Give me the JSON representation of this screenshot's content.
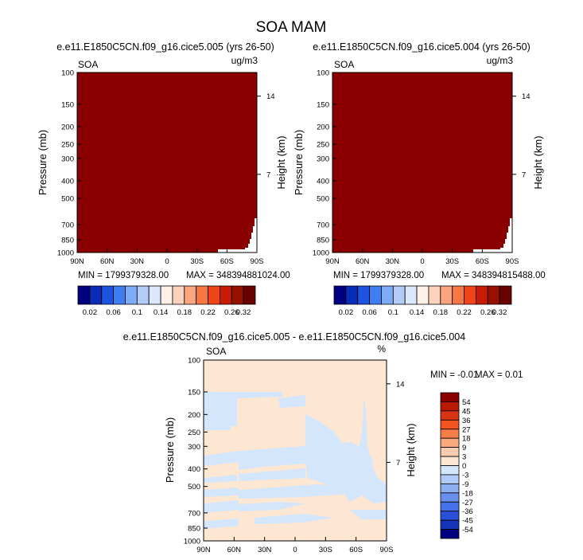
{
  "figure": {
    "title": "SOA MAM"
  },
  "chart_data": [
    {
      "type": "heatmap",
      "title": "e.e11.E1850C5CN.f09_g16.cice5.005 (yrs 26-50)",
      "left_label": "SOA",
      "right_label": "ug/m3",
      "ylabel": "Pressure (mb)",
      "y2label": "Height (km)",
      "x_ticks": [
        "90N",
        "60N",
        "30N",
        "0",
        "30S",
        "60S",
        "90S"
      ],
      "y_ticks": [
        "100",
        "150",
        "200",
        "250",
        "300",
        "400",
        "500",
        "700",
        "850",
        "1000"
      ],
      "y_tick_values": [
        100,
        150,
        200,
        250,
        300,
        400,
        500,
        700,
        850,
        1000
      ],
      "y2_ticks": [
        "14",
        "7"
      ],
      "y2_tick_values": [
        14,
        7
      ],
      "xlim": [
        90,
        -90
      ],
      "ylim": [
        100,
        1000
      ],
      "min_text": "MIN = 1799379328.00",
      "max_text": "MAX = 348394881024.00",
      "fill_color": "#8a0000",
      "colorbar_labels": [
        "0.02",
        "0.06",
        "0.1",
        "0.14",
        "0.18",
        "0.22",
        "0.26",
        "0.32"
      ]
    },
    {
      "type": "heatmap",
      "title": "e.e11.E1850C5CN.f09_g16.cice5.004 (yrs 26-50)",
      "left_label": "SOA",
      "right_label": "ug/m3",
      "ylabel": "Pressure (mb)",
      "y2label": "Height (km)",
      "x_ticks": [
        "90N",
        "60N",
        "30N",
        "0",
        "30S",
        "60S",
        "90S"
      ],
      "y_ticks": [
        "100",
        "150",
        "200",
        "250",
        "300",
        "400",
        "500",
        "700",
        "850",
        "1000"
      ],
      "y_tick_values": [
        100,
        150,
        200,
        250,
        300,
        400,
        500,
        700,
        850,
        1000
      ],
      "y2_ticks": [
        "14",
        "7"
      ],
      "y2_tick_values": [
        14,
        7
      ],
      "xlim": [
        90,
        -90
      ],
      "ylim": [
        100,
        1000
      ],
      "min_text": "MIN = 1799379328.00",
      "max_text": "MAX = 348394815488.00",
      "fill_color": "#8a0000",
      "colorbar_labels": [
        "0.02",
        "0.06",
        "0.1",
        "0.14",
        "0.18",
        "0.22",
        "0.26",
        "0.32"
      ]
    },
    {
      "type": "heatmap",
      "title": "e.e11.E1850C5CN.f09_g16.cice5.005 - e.e11.E1850C5CN.f09_g16.cice5.004",
      "left_label": "SOA",
      "right_label": "%",
      "ylabel": "Pressure (mb)",
      "y2label": "Height (km)",
      "x_ticks": [
        "90N",
        "60N",
        "30N",
        "0",
        "30S",
        "60S",
        "90S"
      ],
      "y_ticks": [
        "100",
        "150",
        "200",
        "250",
        "300",
        "400",
        "500",
        "700",
        "850",
        "1000"
      ],
      "y_tick_values": [
        100,
        150,
        200,
        250,
        300,
        400,
        500,
        700,
        850,
        1000
      ],
      "y2_ticks": [
        "14",
        "7"
      ],
      "y2_tick_values": [
        14,
        7
      ],
      "xlim": [
        90,
        -90
      ],
      "ylim": [
        100,
        1000
      ],
      "min_text": "MIN =  -0.01",
      "max_text": "MAX =  0.01",
      "positive_color": "#fde6d2",
      "negative_color": "#d3e6fb",
      "colorbar_labels": [
        "54",
        "45",
        "36",
        "27",
        "18",
        "9",
        "3",
        "0",
        "-3",
        "-9",
        "-18",
        "-27",
        "-36",
        "-45",
        "-54"
      ]
    }
  ],
  "colorbar_top": {
    "colors": [
      "#000080",
      "#0a2bb8",
      "#1c53e0",
      "#3d7ff2",
      "#7faaf5",
      "#b3ccf7",
      "#dbe7fb",
      "#fdf0e6",
      "#fbd3bd",
      "#f9a680",
      "#f67742",
      "#ee4417",
      "#c91b04",
      "#961000",
      "#6b0000"
    ]
  },
  "colorbar_diff": {
    "colors": [
      "#880000",
      "#b81900",
      "#d93413",
      "#f2541f",
      "#f77d46",
      "#f9a97e",
      "#fbccb0",
      "#fde6d2",
      "#d3e6fb",
      "#b0cbf5",
      "#8eaef2",
      "#6b8fed",
      "#4572ea",
      "#2a4fd8",
      "#1634b8",
      "#000080"
    ]
  }
}
